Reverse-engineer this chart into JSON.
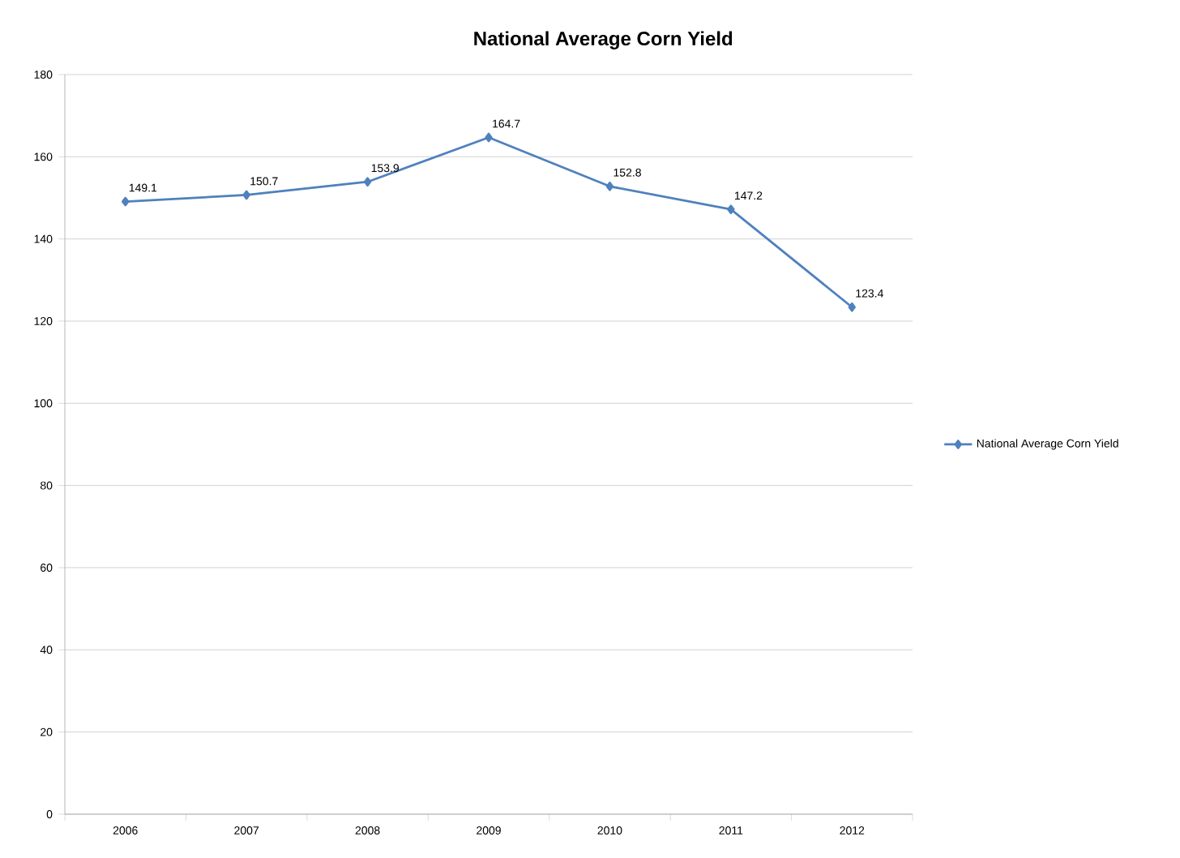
{
  "chart_data": {
    "type": "line",
    "title": "National Average Corn Yield",
    "categories": [
      "2006",
      "2007",
      "2008",
      "2009",
      "2010",
      "2011",
      "2012"
    ],
    "series": [
      {
        "name": "National Average Corn Yield",
        "color": "#4f81bd",
        "values": [
          149.1,
          150.7,
          153.9,
          164.7,
          152.8,
          147.2,
          123.4
        ]
      }
    ],
    "ylim": [
      0,
      180
    ],
    "yticks": [
      0,
      20,
      40,
      60,
      80,
      100,
      120,
      140,
      160,
      180
    ],
    "grid": "y",
    "legend": "right",
    "marker": "diamond",
    "data_labels": true
  }
}
